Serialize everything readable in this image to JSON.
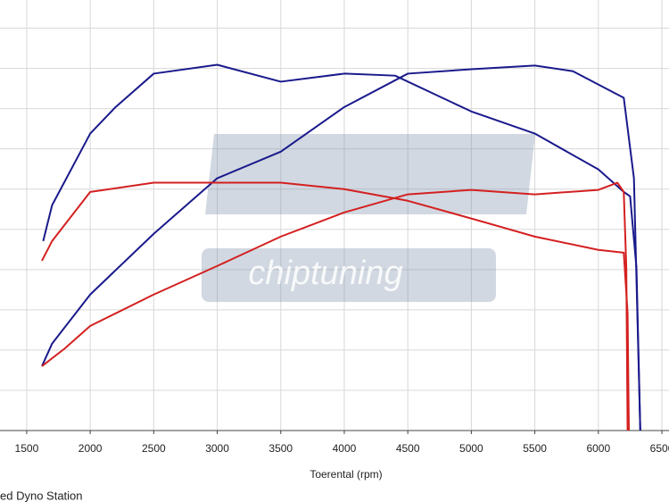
{
  "chart_data": {
    "type": "line",
    "x_label": "Toerental (rpm)",
    "footer": "ed Dyno Station",
    "watermark": "chiptuning",
    "xlim": [
      1290,
      6556
    ],
    "xticks": [
      1500,
      2000,
      2500,
      3000,
      3500,
      4000,
      4500,
      5000,
      5500,
      6000,
      6500
    ],
    "ylim": [
      0,
      10.7
    ],
    "ygrid": [
      1,
      2,
      3,
      4,
      5,
      6,
      7,
      8,
      9,
      10
    ],
    "grid": true,
    "series": [
      {
        "color": "#1a1a8c",
        "x": [
          1620,
          1700,
          2000,
          2500,
          3000,
          3500,
          4000,
          4500,
          5000,
          5500,
          5800,
          6000,
          6200,
          6280,
          6330
        ],
        "values": [
          1.6,
          2.16,
          3.38,
          4.89,
          6.27,
          6.93,
          8.04,
          8.87,
          8.98,
          9.07,
          8.93,
          8.6,
          8.27,
          6.27,
          0
        ]
      },
      {
        "color": "#1a1a8c",
        "x": [
          1630,
          1700,
          2000,
          2200,
          2500,
          3000,
          3500,
          4000,
          4400,
          5000,
          5500,
          6000,
          6200,
          6250,
          6300,
          6330
        ],
        "values": [
          4.71,
          5.6,
          7.38,
          8.04,
          8.87,
          9.09,
          8.67,
          8.87,
          8.82,
          7.93,
          7.38,
          6.49,
          5.93,
          5.82,
          4.04,
          0
        ]
      },
      {
        "color": "#d42020",
        "x": [
          1620,
          1700,
          2000,
          2500,
          3000,
          3500,
          4000,
          4500,
          5000,
          5500,
          6000,
          6200,
          6230,
          6240
        ],
        "values": [
          4.22,
          4.71,
          5.93,
          6.16,
          6.16,
          6.16,
          6.0,
          5.71,
          5.27,
          4.82,
          4.49,
          4.42,
          2.93,
          0
        ]
      },
      {
        "color": "#d42020",
        "x": [
          1620,
          1800,
          2000,
          2500,
          3000,
          3500,
          4000,
          4500,
          5000,
          5500,
          6000,
          6150,
          6200,
          6220,
          6230
        ],
        "values": [
          1.6,
          2.04,
          2.6,
          3.38,
          4.09,
          4.82,
          5.42,
          5.87,
          5.98,
          5.87,
          5.98,
          6.16,
          5.93,
          4.04,
          0
        ]
      }
    ]
  }
}
